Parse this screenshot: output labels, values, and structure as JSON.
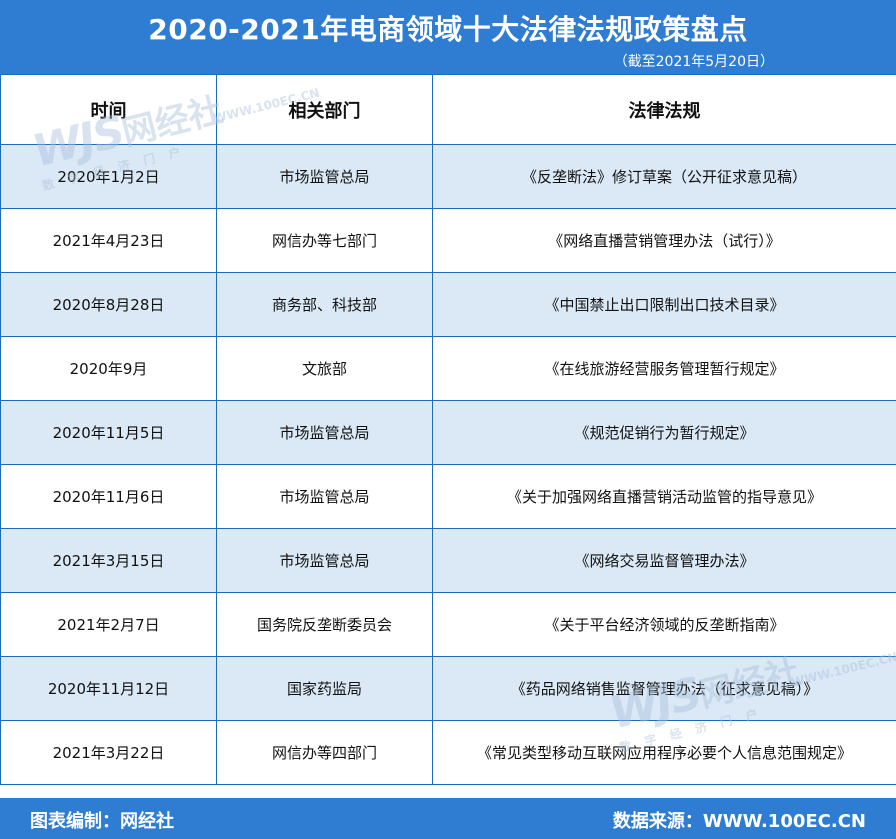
{
  "header": {
    "title": "2020-2021年电商领域十大法律法规政策盘点",
    "subtitle": "（截至2021年5月20日）"
  },
  "table": {
    "columns": [
      "时间",
      "相关部门",
      "法律法规"
    ],
    "rows": [
      {
        "date": "2020年1月2日",
        "dept": "市场监管总局",
        "law": "《反垄断法》修订草案（公开征求意见稿）"
      },
      {
        "date": "2021年4月23日",
        "dept": "网信办等七部门",
        "law": "《网络直播营销管理办法（试行）》"
      },
      {
        "date": "2020年8月28日",
        "dept": "商务部、科技部",
        "law": "《中国禁止出口限制出口技术目录》"
      },
      {
        "date": "2020年9月",
        "dept": "文旅部",
        "law": "《在线旅游经营服务管理暂行规定》"
      },
      {
        "date": "2020年11月5日",
        "dept": "市场监管总局",
        "law": "《规范促销行为暂行规定》"
      },
      {
        "date": "2020年11月6日",
        "dept": "市场监管总局",
        "law": "《关于加强网络直播营销活动监管的指导意见》"
      },
      {
        "date": "2021年3月15日",
        "dept": "市场监管总局",
        "law": "《网络交易监督管理办法》"
      },
      {
        "date": "2021年2月7日",
        "dept": "国务院反垄断委员会",
        "law": "《关于平台经济领域的反垄断指南》"
      },
      {
        "date": "2020年11月12日",
        "dept": "国家药监局",
        "law": "《药品网络销售监督管理办法（征求意见稿）》"
      },
      {
        "date": "2021年3月22日",
        "dept": "网信办等四部门",
        "law": "《常见类型移动互联网应用程序必要个人信息范围规定》"
      }
    ]
  },
  "footer": {
    "left": "图表编制：网经社",
    "right": "数据来源：WWW.100EC.CN"
  },
  "watermark": {
    "logo": "WJS",
    "name": "网经社",
    "url": "WWW.100EC.CN",
    "tagline": "数字经济门户"
  },
  "colors": {
    "header_bg": "#2f7dd2",
    "row_shade": "#dbe8f5",
    "border": "#1d6bb8"
  }
}
